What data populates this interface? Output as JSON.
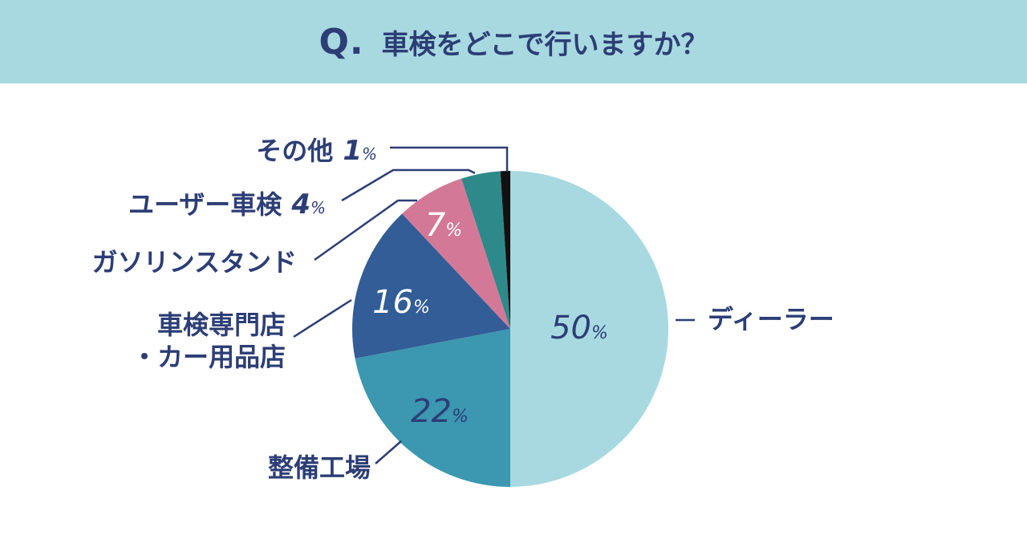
{
  "header": {
    "q_mark": "Q.",
    "question": "車検をどこで行いますか？"
  },
  "chart_data": {
    "type": "pie",
    "title": "車検をどこで行いますか？",
    "start": "12 o'clock, clockwise",
    "unit": "%",
    "slices": [
      {
        "label": "ディーラー",
        "value": 50,
        "color": "#a8d9e1"
      },
      {
        "label": "整備工場",
        "value": 22,
        "color": "#3c97b0"
      },
      {
        "label": "車検専門店\n・カー用品店",
        "label_lines": [
          "車検専門店",
          "・カー用品店"
        ],
        "value": 16,
        "color": "#325d96"
      },
      {
        "label": "ガソリンスタンド",
        "value": 7,
        "color": "#d47898"
      },
      {
        "label": "ユーザー車検",
        "value": 4,
        "color": "#2e8a8a"
      },
      {
        "label": "その他",
        "value": 1,
        "color": "#111111"
      }
    ]
  }
}
